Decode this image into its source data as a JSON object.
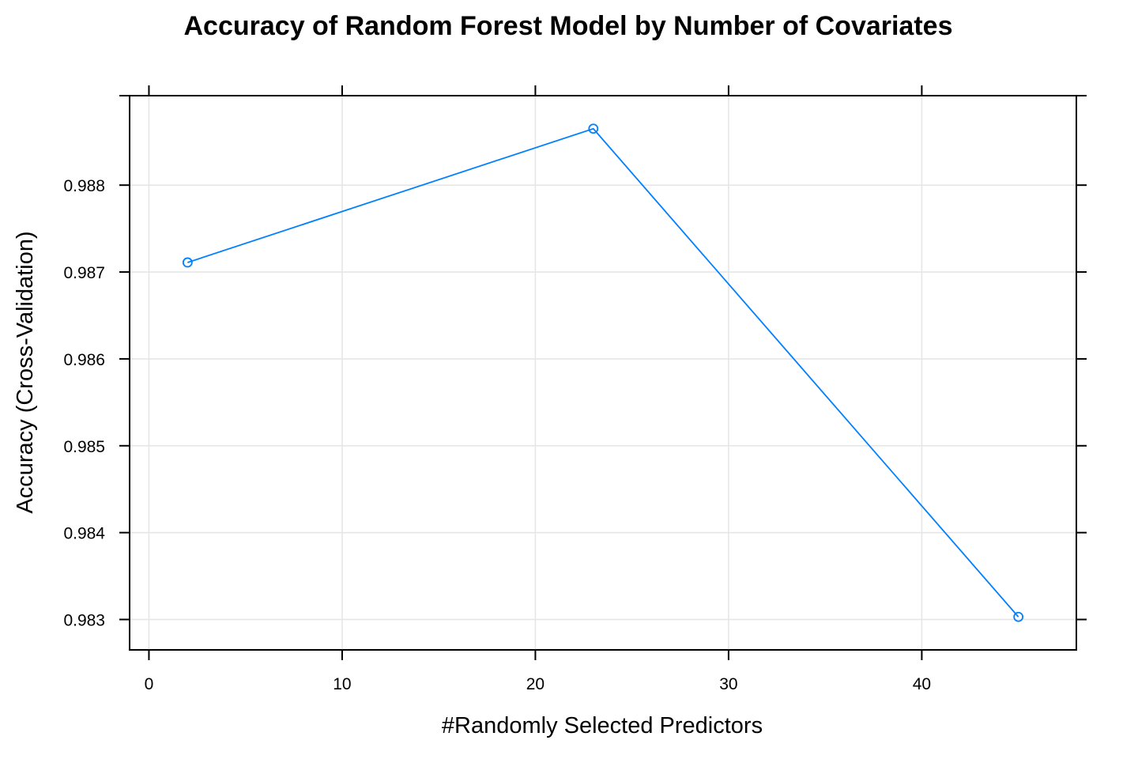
{
  "chart_data": {
    "type": "line",
    "title": "Accuracy of Random Forest Model by Number of Covariates",
    "xlabel": "#Randomly Selected Predictors",
    "ylabel": "Accuracy (Cross-Validation)",
    "x": [
      2,
      23,
      45
    ],
    "series": [
      {
        "values": [
          0.98711,
          0.98865,
          0.98303
        ]
      }
    ],
    "xlim": [
      -1,
      48
    ],
    "ylim": [
      0.98265,
      0.98903
    ],
    "xticks": [
      0,
      10,
      20,
      30,
      40
    ],
    "xtick_labels": [
      "0",
      "10",
      "20",
      "30",
      "40"
    ],
    "yticks": [
      0.983,
      0.984,
      0.985,
      0.986,
      0.987,
      0.988
    ],
    "ytick_labels": [
      "0.983",
      "0.984",
      "0.985",
      "0.986",
      "0.987",
      "0.988"
    ],
    "grid": true,
    "line_color": "#0080ff",
    "marker": "open-circle"
  }
}
